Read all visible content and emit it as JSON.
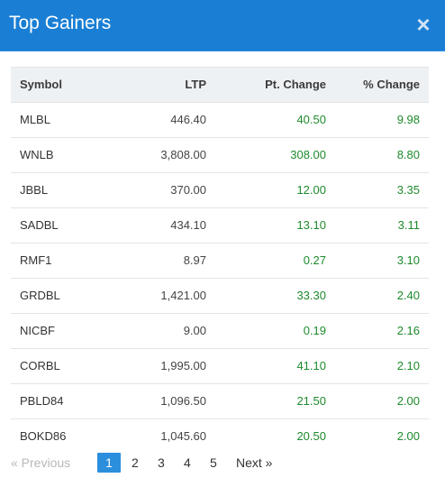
{
  "header": {
    "title": "Top Gainers",
    "close_glyph": "×"
  },
  "table": {
    "columns": {
      "symbol": "Symbol",
      "ltp": "LTP",
      "pt_change": "Pt. Change",
      "pct_change": "% Change"
    },
    "rows": [
      {
        "symbol": "MLBL",
        "ltp": "446.40",
        "pt": "40.50",
        "pct": "9.98"
      },
      {
        "symbol": "WNLB",
        "ltp": "3,808.00",
        "pt": "308.00",
        "pct": "8.80"
      },
      {
        "symbol": "JBBL",
        "ltp": "370.00",
        "pt": "12.00",
        "pct": "3.35"
      },
      {
        "symbol": "SADBL",
        "ltp": "434.10",
        "pt": "13.10",
        "pct": "3.11"
      },
      {
        "symbol": "RMF1",
        "ltp": "8.97",
        "pt": "0.27",
        "pct": "3.10"
      },
      {
        "symbol": "GRDBL",
        "ltp": "1,421.00",
        "pt": "33.30",
        "pct": "2.40"
      },
      {
        "symbol": "NICBF",
        "ltp": "9.00",
        "pt": "0.19",
        "pct": "2.16"
      },
      {
        "symbol": "CORBL",
        "ltp": "1,995.00",
        "pt": "41.10",
        "pct": "2.10"
      },
      {
        "symbol": "PBLD84",
        "ltp": "1,096.50",
        "pt": "21.50",
        "pct": "2.00"
      },
      {
        "symbol": "BOKD86",
        "ltp": "1,045.60",
        "pt": "20.50",
        "pct": "2.00"
      }
    ]
  },
  "pagination": {
    "prev": "« Previous",
    "pages": [
      "1",
      "2",
      "3",
      "4",
      "5"
    ],
    "current": "1",
    "next": "Next »"
  },
  "colors": {
    "header_bg": "#1a7fd4",
    "positive": "#1e8a2c",
    "active_page": "#2b8fde"
  }
}
